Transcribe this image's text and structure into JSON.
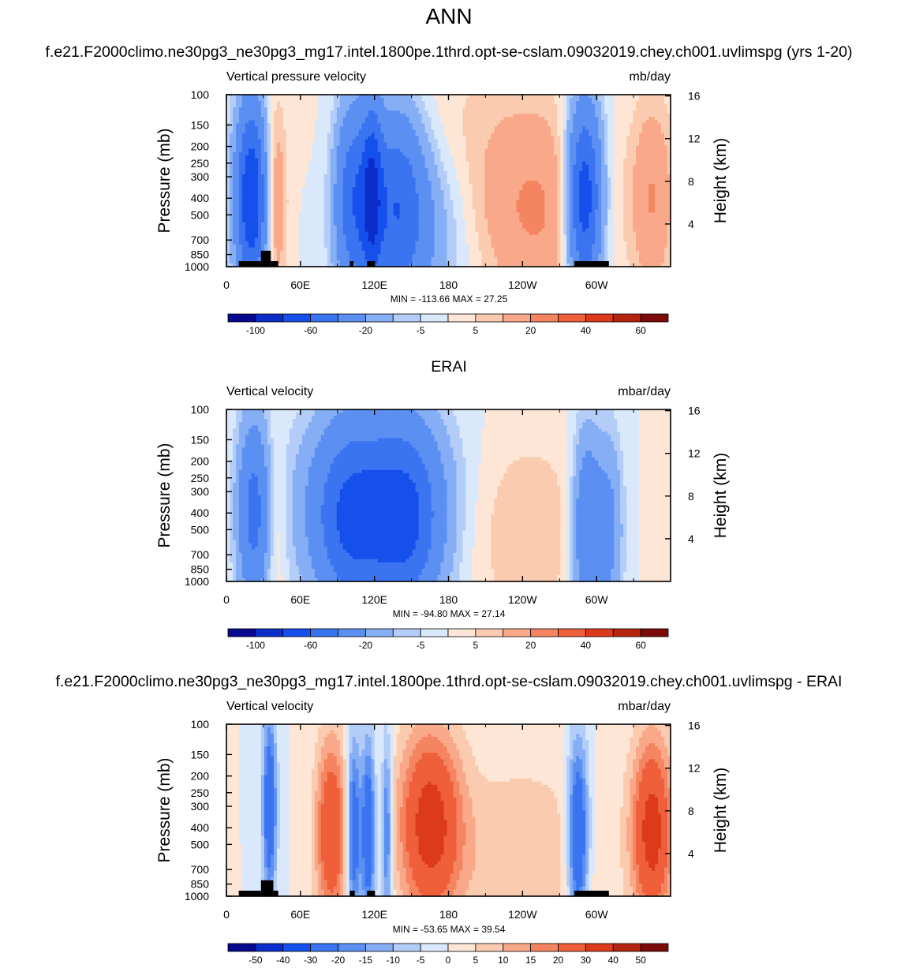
{
  "main_title": "ANN",
  "panels": [
    {
      "id": "test",
      "header": "f.e21.F2000climo.ne30pg3_ne30pg3_mg17.intel.1800pe.1thrd.opt-se-cslam.09032019.chey.ch001.uvlimspg (yrs 1-20)",
      "left_label": "Vertical pressure velocity",
      "right_label": "mb/day",
      "ylabel": "Pressure (mb)",
      "ylabel_right": "Height (km)",
      "stats": "MIN = -113.66  MAX =  27.25",
      "colorbar": {
        "colors": [
          "#08088f",
          "#0b2dc9",
          "#1650ec",
          "#3a74f0",
          "#5b8ff2",
          "#85aef5",
          "#b3cdf8",
          "#d9e8fb",
          "#fde6d6",
          "#fbcbb0",
          "#f9a98a",
          "#f58560",
          "#ee5f3a",
          "#dd3a1c",
          "#b4240e",
          "#7c0a08"
        ],
        "labels": [
          {
            "text": "-100",
            "index": 1
          },
          {
            "text": "-60",
            "index": 3
          },
          {
            "text": "-20",
            "index": 5
          },
          {
            "text": "-5",
            "index": 7
          },
          {
            "text": "5",
            "index": 9
          },
          {
            "text": "20",
            "index": 11
          },
          {
            "text": "40",
            "index": 13
          },
          {
            "text": "60",
            "index": 15
          }
        ]
      }
    },
    {
      "id": "obs",
      "header": "ERAI",
      "left_label": "Vertical velocity",
      "right_label": "mbar/day",
      "ylabel": "Pressure (mb)",
      "ylabel_right": "Height (km)",
      "stats": "MIN = -94.80  MAX =  27.14",
      "colorbar": {
        "colors": [
          "#08088f",
          "#0b2dc9",
          "#1650ec",
          "#3a74f0",
          "#5b8ff2",
          "#85aef5",
          "#b3cdf8",
          "#d9e8fb",
          "#fde6d6",
          "#fbcbb0",
          "#f9a98a",
          "#f58560",
          "#ee5f3a",
          "#dd3a1c",
          "#b4240e",
          "#7c0a08"
        ],
        "labels": [
          {
            "text": "-100",
            "index": 1
          },
          {
            "text": "-60",
            "index": 3
          },
          {
            "text": "-20",
            "index": 5
          },
          {
            "text": "-5",
            "index": 7
          },
          {
            "text": "5",
            "index": 9
          },
          {
            "text": "20",
            "index": 11
          },
          {
            "text": "40",
            "index": 13
          },
          {
            "text": "60",
            "index": 15
          }
        ]
      }
    },
    {
      "id": "diff",
      "header": "f.e21.F2000climo.ne30pg3_ne30pg3_mg17.intel.1800pe.1thrd.opt-se-cslam.09032019.chey.ch001.uvlimspg - ERAI",
      "left_label": "Vertical velocity",
      "right_label": "mbar/day",
      "ylabel": "Pressure (mb)",
      "ylabel_right": "Height (km)",
      "stats": "MIN = -53.65  MAX =  39.54",
      "colorbar": {
        "colors": [
          "#08088f",
          "#0b2dc9",
          "#1650ec",
          "#3a74f0",
          "#5b8ff2",
          "#85aef5",
          "#b3cdf8",
          "#d9e8fb",
          "#fde6d6",
          "#fbcbb0",
          "#f9a98a",
          "#f58560",
          "#ee5f3a",
          "#dd3a1c",
          "#b4240e",
          "#7c0a08"
        ],
        "labels": [
          {
            "text": "-50",
            "index": 1
          },
          {
            "text": "-40",
            "index": 2
          },
          {
            "text": "-30",
            "index": 3
          },
          {
            "text": "-20",
            "index": 4
          },
          {
            "text": "-15",
            "index": 5
          },
          {
            "text": "-10",
            "index": 6
          },
          {
            "text": "-5",
            "index": 7
          },
          {
            "text": "0",
            "index": 8
          },
          {
            "text": "5",
            "index": 9
          },
          {
            "text": "10",
            "index": 10
          },
          {
            "text": "15",
            "index": 11
          },
          {
            "text": "20",
            "index": 12
          },
          {
            "text": "30",
            "index": 13
          },
          {
            "text": "40",
            "index": 14
          },
          {
            "text": "50",
            "index": 15
          }
        ]
      }
    }
  ],
  "chart_data": [
    {
      "type": "heatmap",
      "title": "f.e21.F2000climo.ne30pg3_ne30pg3_mg17.intel.1800pe.1thrd.opt-se-cslam.09032019.chey.ch001.uvlimspg (yrs 1-20)",
      "variable": "Vertical pressure velocity",
      "units": "mb/day",
      "xlabel": "",
      "ylabel": "Pressure (mb)",
      "ylabel_right": "Height (km)",
      "x_ticks": [
        "0",
        "60E",
        "120E",
        "180",
        "120W",
        "60W"
      ],
      "x_tick_values": [
        0,
        60,
        120,
        180,
        240,
        300
      ],
      "xlim": [
        0,
        360
      ],
      "y_ticks": [
        100,
        150,
        200,
        250,
        300,
        400,
        500,
        700,
        850,
        1000
      ],
      "ylim": [
        1000,
        100
      ],
      "y_scale": "log",
      "y_right_ticks": [
        4,
        8,
        12,
        16
      ],
      "levels": [
        -100,
        -80,
        -60,
        -40,
        -20,
        -10,
        -5,
        0,
        5,
        10,
        20,
        30,
        40,
        50,
        60
      ],
      "min": -113.66,
      "max": 27.25,
      "features": [
        {
          "lon": 20,
          "p": 400,
          "value": -80,
          "width": 9
        },
        {
          "lon": 40,
          "p": 420,
          "value": 20,
          "width": 6
        },
        {
          "lon": 102,
          "p": 400,
          "value": -50,
          "width": 10
        },
        {
          "lon": 118,
          "p": 380,
          "value": -55,
          "width": 6
        },
        {
          "lon": 138,
          "p": 400,
          "value": -45,
          "width": 16
        },
        {
          "lon": 150,
          "p": 650,
          "value": -20,
          "width": 30
        },
        {
          "lon": 250,
          "p": 500,
          "value": 20,
          "width": 35
        },
        {
          "lon": 290,
          "p": 400,
          "value": -80,
          "width": 10
        },
        {
          "lon": 345,
          "p": 400,
          "value": 20,
          "width": 12
        },
        {
          "lon": 200,
          "p": 150,
          "value": 5,
          "width": 60
        }
      ],
      "topography": [
        [
          10,
          28,
          1000
        ],
        [
          28,
          36,
          870
        ],
        [
          36,
          42,
          1000
        ],
        [
          100,
          103,
          1000
        ],
        [
          114,
          120,
          1000
        ],
        [
          282,
          310,
          1000
        ]
      ]
    },
    {
      "type": "heatmap",
      "title": "ERAI",
      "variable": "Vertical velocity",
      "units": "mbar/day",
      "xlabel": "",
      "ylabel": "Pressure (mb)",
      "ylabel_right": "Height (km)",
      "x_ticks": [
        "0",
        "60E",
        "120E",
        "180",
        "120W",
        "60W"
      ],
      "x_tick_values": [
        0,
        60,
        120,
        180,
        240,
        300
      ],
      "xlim": [
        0,
        360
      ],
      "y_ticks": [
        100,
        150,
        200,
        250,
        300,
        400,
        500,
        700,
        850,
        1000
      ],
      "ylim": [
        1000,
        100
      ],
      "y_scale": "log",
      "y_right_ticks": [
        4,
        8,
        12,
        16
      ],
      "levels": [
        -100,
        -80,
        -60,
        -40,
        -20,
        -10,
        -5,
        0,
        5,
        10,
        20,
        30,
        40,
        50,
        60
      ],
      "min": -94.8,
      "max": 27.14,
      "features": [
        {
          "lon": 22,
          "p": 400,
          "value": -45,
          "width": 9
        },
        {
          "lon": 40,
          "p": 450,
          "value": 10,
          "width": 6
        },
        {
          "lon": 100,
          "p": 450,
          "value": -45,
          "width": 20
        },
        {
          "lon": 145,
          "p": 450,
          "value": -50,
          "width": 20
        },
        {
          "lon": 120,
          "p": 350,
          "value": -25,
          "width": 45
        },
        {
          "lon": 240,
          "p": 500,
          "value": 10,
          "width": 35
        },
        {
          "lon": 292,
          "p": 500,
          "value": -40,
          "width": 8
        },
        {
          "lon": 310,
          "p": 500,
          "value": -25,
          "width": 8
        }
      ],
      "topography": []
    },
    {
      "type": "heatmap",
      "title": "f.e21.F2000climo.ne30pg3_ne30pg3_mg17.intel.1800pe.1thrd.opt-se-cslam.09032019.chey.ch001.uvlimspg - ERAI",
      "variable": "Vertical velocity",
      "units": "mbar/day",
      "xlabel": "",
      "ylabel": "Pressure (mb)",
      "ylabel_right": "Height (km)",
      "x_ticks": [
        "0",
        "60E",
        "120E",
        "180",
        "120W",
        "60W"
      ],
      "x_tick_values": [
        0,
        60,
        120,
        180,
        240,
        300
      ],
      "xlim": [
        0,
        360
      ],
      "y_ticks": [
        100,
        150,
        200,
        250,
        300,
        400,
        500,
        700,
        850,
        1000
      ],
      "ylim": [
        1000,
        100
      ],
      "y_scale": "log",
      "y_right_ticks": [
        4,
        8,
        12,
        16
      ],
      "levels": [
        -50,
        -40,
        -30,
        -20,
        -15,
        -10,
        -5,
        0,
        5,
        10,
        15,
        20,
        30,
        40,
        50
      ],
      "min": -53.65,
      "max": 39.54,
      "features": [
        {
          "lon": 35,
          "p": 300,
          "value": -30,
          "width": 4
        },
        {
          "lon": 85,
          "p": 420,
          "value": 30,
          "width": 9
        },
        {
          "lon": 103,
          "p": 420,
          "value": -30,
          "width": 4
        },
        {
          "lon": 115,
          "p": 420,
          "value": -30,
          "width": 4
        },
        {
          "lon": 130,
          "p": 420,
          "value": -25,
          "width": 3
        },
        {
          "lon": 165,
          "p": 380,
          "value": 35,
          "width": 18
        },
        {
          "lon": 285,
          "p": 450,
          "value": -35,
          "width": 6
        },
        {
          "lon": 345,
          "p": 420,
          "value": 35,
          "width": 12
        },
        {
          "lon": 240,
          "p": 600,
          "value": 10,
          "width": 40
        }
      ],
      "topography": [
        [
          10,
          28,
          1000
        ],
        [
          28,
          38,
          870
        ],
        [
          38,
          42,
          1000
        ],
        [
          100,
          104,
          1000
        ],
        [
          114,
          120,
          1000
        ],
        [
          282,
          310,
          1000
        ]
      ]
    }
  ]
}
